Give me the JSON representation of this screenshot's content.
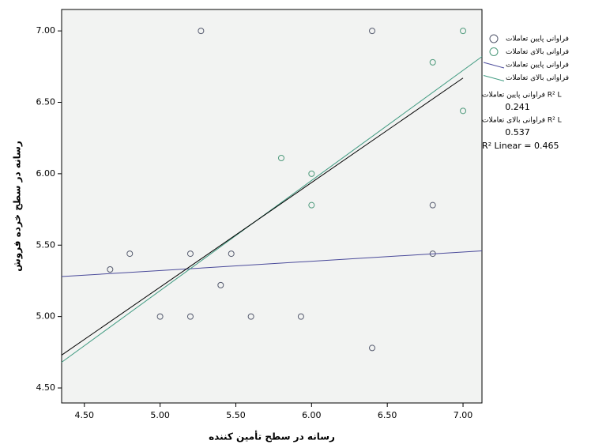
{
  "chart_data": {
    "type": "scatter",
    "x_label": "رسانه در سطح تأمین کننده",
    "y_label": "رسانه در سطح خرده فروش",
    "xlim": [
      4.35,
      7.125
    ],
    "ylim": [
      4.395,
      7.15
    ],
    "xticks": [
      {
        "value": 4.5,
        "label": "4.50"
      },
      {
        "value": 5,
        "label": "5.00"
      },
      {
        "value": 5.5,
        "label": "5.50"
      },
      {
        "value": 6,
        "label": "6.00"
      },
      {
        "value": 6.5,
        "label": "6.50"
      },
      {
        "value": 7,
        "label": "7.00"
      }
    ],
    "yticks": [
      {
        "value": 4.5,
        "label": "4.50"
      },
      {
        "value": 5,
        "label": "5.00"
      },
      {
        "value": 5.5,
        "label": "5.50"
      },
      {
        "value": 6,
        "label": "6.00"
      },
      {
        "value": 6.5,
        "label": "6.50"
      },
      {
        "value": 7,
        "label": "7.00"
      }
    ],
    "series": [
      {
        "name": "فراوانی پایین تعاملات",
        "color": "#555a6e",
        "x": [
          4.67,
          4.8,
          5.0,
          5.2,
          5.2,
          5.27,
          5.4,
          5.47,
          5.6,
          5.93,
          6.4,
          6.4,
          6.8,
          6.8
        ],
        "values": [
          5.33,
          5.44,
          5.0,
          5.44,
          5.0,
          7.0,
          5.22,
          5.44,
          5.0,
          5.0,
          7.0,
          4.78,
          5.78,
          5.44
        ]
      },
      {
        "name": "فراوانی بالای تعاملات",
        "color": "#4f9a7c",
        "x": [
          5.8,
          6.0,
          6.0,
          6.8,
          7.0,
          7.0
        ],
        "values": [
          6.11,
          6.0,
          5.78,
          6.78,
          7.0,
          6.44
        ]
      }
    ],
    "fit_lines": [
      {
        "name": "فراوانی پایین تعاملات",
        "color": "#4a4a9a",
        "x": [
          4.35,
          7.125
        ],
        "values": [
          5.28,
          5.46
        ]
      },
      {
        "name": "فراوانی بالای تعاملات",
        "color": "#3f9a80",
        "x": [
          4.35,
          7.125
        ],
        "values": [
          4.68,
          6.82
        ]
      }
    ],
    "total_fit": {
      "color": "#000000",
      "x": [
        4.35,
        7.0
      ],
      "values": [
        4.73,
        6.67
      ]
    },
    "r2_labels": [
      "فراوانی پایین تعاملات R² L",
      "فراوانی بالای تعاملات R² L"
    ],
    "r2_values": [
      0.241,
      0.537
    ],
    "r2_total": "R² Linear = 0.465"
  }
}
